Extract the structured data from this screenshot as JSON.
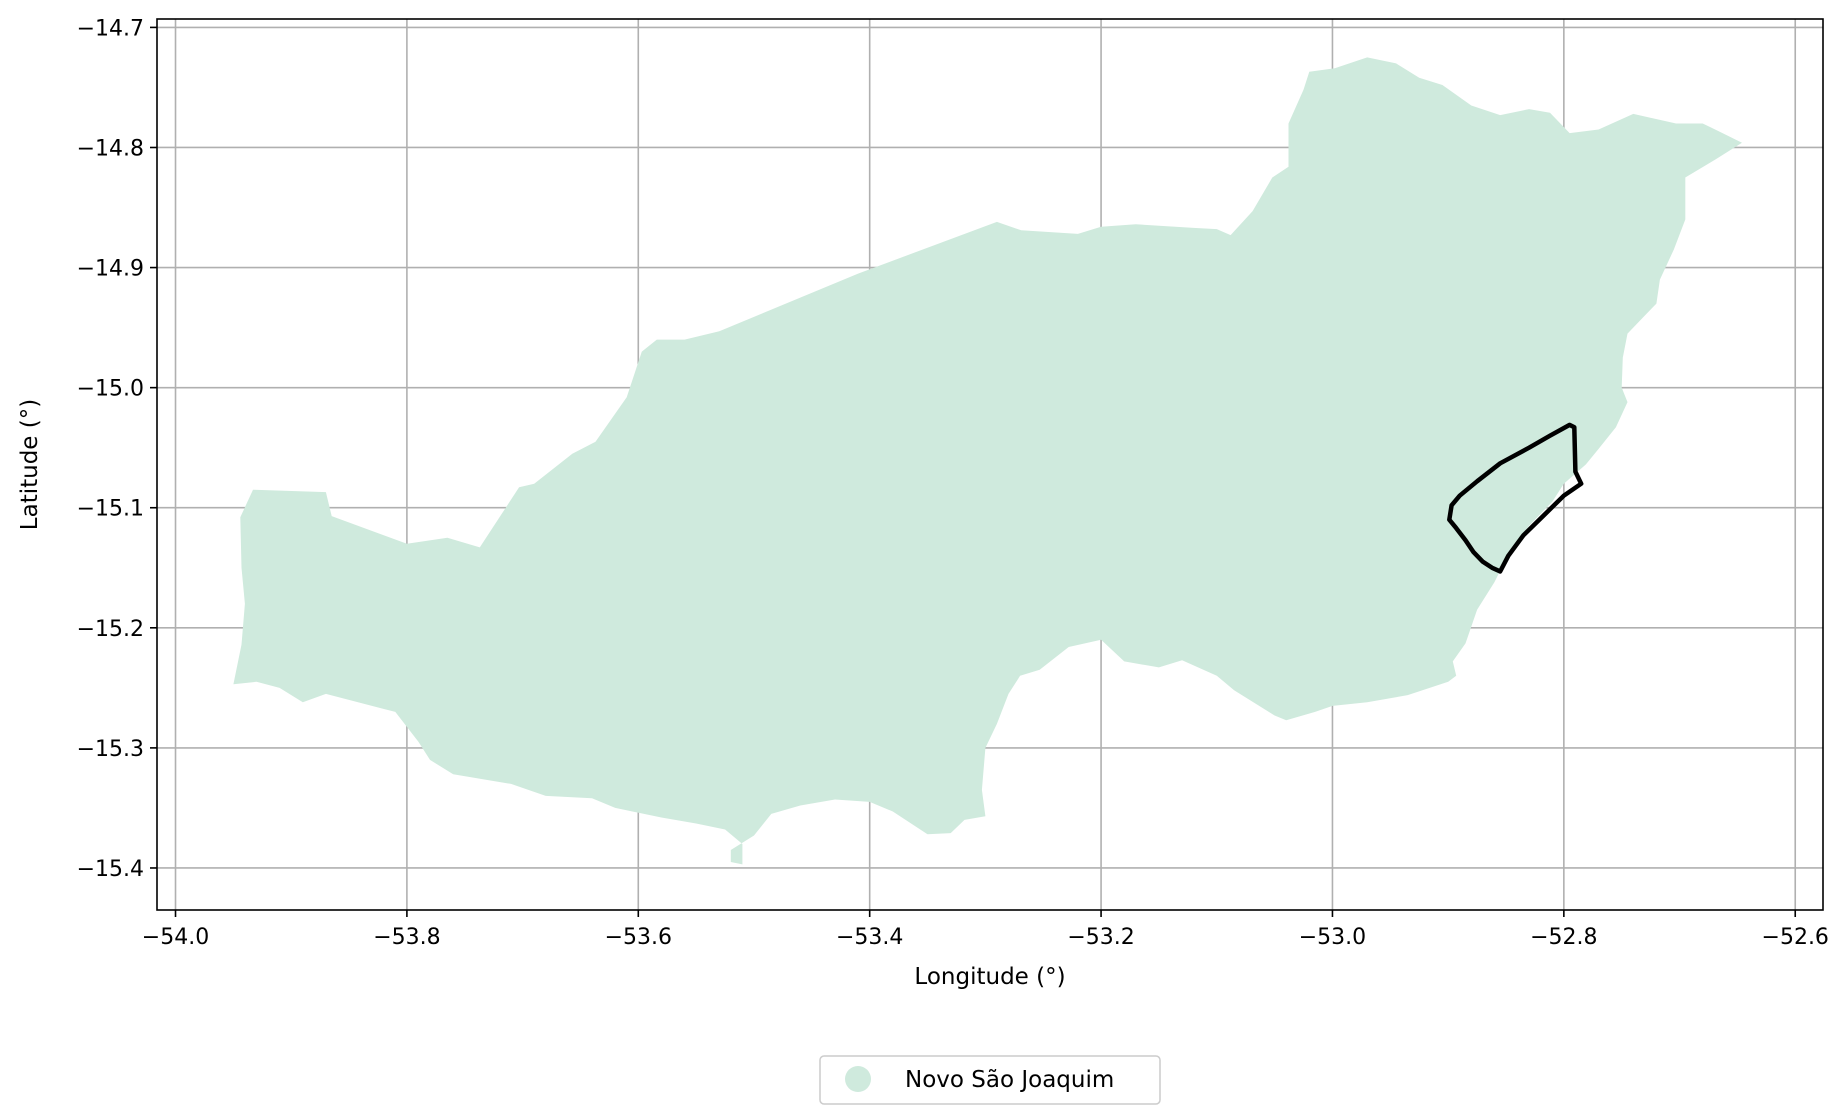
{
  "chart_data": {
    "type": "map",
    "xlabel": "Longitude (°)",
    "ylabel": "Latitude (°)",
    "xlim": [
      -54.016,
      -52.576
    ],
    "ylim": [
      -15.435,
      -14.693
    ],
    "xticks": [
      -54.0,
      -53.8,
      -53.6,
      -53.4,
      -53.2,
      -53.0,
      -52.8,
      -52.6
    ],
    "yticks": [
      -14.7,
      -14.8,
      -14.9,
      -15.0,
      -15.1,
      -15.2,
      -15.3,
      -15.4
    ],
    "xtick_labels": [
      "−54.0",
      "−53.8",
      "−53.6",
      "−53.4",
      "−53.2",
      "−53.0",
      "−52.8",
      "−52.6"
    ],
    "ytick_labels": [
      "−14.7",
      "−14.8",
      "−14.9",
      "−15.0",
      "−15.1",
      "−15.2",
      "−15.3",
      "−15.4"
    ],
    "grid": true,
    "legend_position": "bottom-center",
    "colors": {
      "region_fill": "#cfeadd",
      "outline": "#000000",
      "grid": "#b0b0b0"
    },
    "series": [
      {
        "name": "Novo São Joaquim",
        "type": "polygon",
        "color": "#cfeadd",
        "coords": [
          [
            -53.95,
            -15.247
          ],
          [
            -53.943,
            -15.214
          ],
          [
            -53.94,
            -15.18
          ],
          [
            -53.943,
            -15.15
          ],
          [
            -53.944,
            -15.108
          ],
          [
            -53.933,
            -15.085
          ],
          [
            -53.87,
            -15.087
          ],
          [
            -53.865,
            -15.107
          ],
          [
            -53.8,
            -15.13
          ],
          [
            -53.765,
            -15.125
          ],
          [
            -53.737,
            -15.133
          ],
          [
            -53.72,
            -15.108
          ],
          [
            -53.703,
            -15.083
          ],
          [
            -53.69,
            -15.08
          ],
          [
            -53.657,
            -15.055
          ],
          [
            -53.637,
            -15.045
          ],
          [
            -53.61,
            -15.008
          ],
          [
            -53.597,
            -14.97
          ],
          [
            -53.584,
            -14.96
          ],
          [
            -53.56,
            -14.96
          ],
          [
            -53.53,
            -14.953
          ],
          [
            -53.41,
            -14.905
          ],
          [
            -53.29,
            -14.862
          ],
          [
            -53.269,
            -14.869
          ],
          [
            -53.22,
            -14.872
          ],
          [
            -53.2,
            -14.866
          ],
          [
            -53.17,
            -14.864
          ],
          [
            -53.12,
            -14.867
          ],
          [
            -53.1,
            -14.868
          ],
          [
            -53.088,
            -14.873
          ],
          [
            -53.069,
            -14.853
          ],
          [
            -53.052,
            -14.825
          ],
          [
            -53.038,
            -14.816
          ],
          [
            -53.038,
            -14.78
          ],
          [
            -53.025,
            -14.752
          ],
          [
            -53.02,
            -14.737
          ],
          [
            -52.998,
            -14.734
          ],
          [
            -52.97,
            -14.725
          ],
          [
            -52.945,
            -14.73
          ],
          [
            -52.925,
            -14.742
          ],
          [
            -52.905,
            -14.748
          ],
          [
            -52.88,
            -14.765
          ],
          [
            -52.855,
            -14.773
          ],
          [
            -52.83,
            -14.768
          ],
          [
            -52.812,
            -14.771
          ],
          [
            -52.795,
            -14.788
          ],
          [
            -52.77,
            -14.785
          ],
          [
            -52.74,
            -14.772
          ],
          [
            -52.703,
            -14.78
          ],
          [
            -52.68,
            -14.78
          ],
          [
            -52.667,
            -14.786
          ],
          [
            -52.646,
            -14.796
          ],
          [
            -52.669,
            -14.81
          ],
          [
            -52.695,
            -14.825
          ],
          [
            -52.695,
            -14.86
          ],
          [
            -52.705,
            -14.885
          ],
          [
            -52.717,
            -14.91
          ],
          [
            -52.72,
            -14.93
          ],
          [
            -52.735,
            -14.945
          ],
          [
            -52.745,
            -14.955
          ],
          [
            -52.749,
            -14.975
          ],
          [
            -52.75,
            -15.0
          ],
          [
            -52.745,
            -15.012
          ],
          [
            -52.755,
            -15.033
          ],
          [
            -52.77,
            -15.051
          ],
          [
            -52.781,
            -15.064
          ],
          [
            -52.8,
            -15.08
          ],
          [
            -52.81,
            -15.095
          ],
          [
            -52.83,
            -15.115
          ],
          [
            -52.846,
            -15.135
          ],
          [
            -52.86,
            -15.162
          ],
          [
            -52.875,
            -15.185
          ],
          [
            -52.885,
            -15.213
          ],
          [
            -52.896,
            -15.228
          ],
          [
            -52.893,
            -15.24
          ],
          [
            -52.9,
            -15.245
          ],
          [
            -52.935,
            -15.256
          ],
          [
            -52.97,
            -15.262
          ],
          [
            -53.0,
            -15.265
          ],
          [
            -53.015,
            -15.27
          ],
          [
            -53.04,
            -15.277
          ],
          [
            -53.05,
            -15.273
          ],
          [
            -53.085,
            -15.252
          ],
          [
            -53.1,
            -15.24
          ],
          [
            -53.13,
            -15.227
          ],
          [
            -53.15,
            -15.233
          ],
          [
            -53.18,
            -15.228
          ],
          [
            -53.2,
            -15.21
          ],
          [
            -53.228,
            -15.216
          ],
          [
            -53.253,
            -15.235
          ],
          [
            -53.27,
            -15.24
          ],
          [
            -53.28,
            -15.255
          ],
          [
            -53.29,
            -15.28
          ],
          [
            -53.3,
            -15.3
          ],
          [
            -53.303,
            -15.335
          ],
          [
            -53.3,
            -15.357
          ],
          [
            -53.318,
            -15.36
          ],
          [
            -53.33,
            -15.371
          ],
          [
            -53.35,
            -15.372
          ],
          [
            -53.38,
            -15.353
          ],
          [
            -53.4,
            -15.345
          ],
          [
            -53.43,
            -15.343
          ],
          [
            -53.46,
            -15.348
          ],
          [
            -53.485,
            -15.355
          ],
          [
            -53.5,
            -15.373
          ],
          [
            -53.52,
            -15.385
          ],
          [
            -53.52,
            -15.395
          ],
          [
            -53.51,
            -15.397
          ],
          [
            -53.51,
            -15.38
          ],
          [
            -53.525,
            -15.368
          ],
          [
            -53.55,
            -15.363
          ],
          [
            -53.58,
            -15.358
          ],
          [
            -53.62,
            -15.35
          ],
          [
            -53.64,
            -15.342
          ],
          [
            -53.68,
            -15.34
          ],
          [
            -53.71,
            -15.33
          ],
          [
            -53.76,
            -15.322
          ],
          [
            -53.78,
            -15.31
          ],
          [
            -53.79,
            -15.295
          ],
          [
            -53.81,
            -15.27
          ],
          [
            -53.87,
            -15.255
          ],
          [
            -53.89,
            -15.262
          ],
          [
            -53.91,
            -15.25
          ],
          [
            -53.93,
            -15.245
          ]
        ]
      },
      {
        "name": "",
        "type": "outline",
        "color": "#000000",
        "coords": [
          [
            -52.791,
            -15.033
          ],
          [
            -52.79,
            -15.07
          ],
          [
            -52.785,
            -15.08
          ],
          [
            -52.8,
            -15.09
          ],
          [
            -52.818,
            -15.107
          ],
          [
            -52.835,
            -15.123
          ],
          [
            -52.848,
            -15.14
          ],
          [
            -52.855,
            -15.153
          ],
          [
            -52.862,
            -15.15
          ],
          [
            -52.87,
            -15.145
          ],
          [
            -52.878,
            -15.137
          ],
          [
            -52.885,
            -15.127
          ],
          [
            -52.893,
            -15.117
          ],
          [
            -52.899,
            -15.11
          ],
          [
            -52.897,
            -15.098
          ],
          [
            -52.89,
            -15.09
          ],
          [
            -52.875,
            -15.078
          ],
          [
            -52.855,
            -15.063
          ],
          [
            -52.83,
            -15.05
          ],
          [
            -52.812,
            -15.04
          ],
          [
            -52.795,
            -15.031
          ],
          [
            -52.791,
            -15.033
          ]
        ]
      }
    ]
  }
}
